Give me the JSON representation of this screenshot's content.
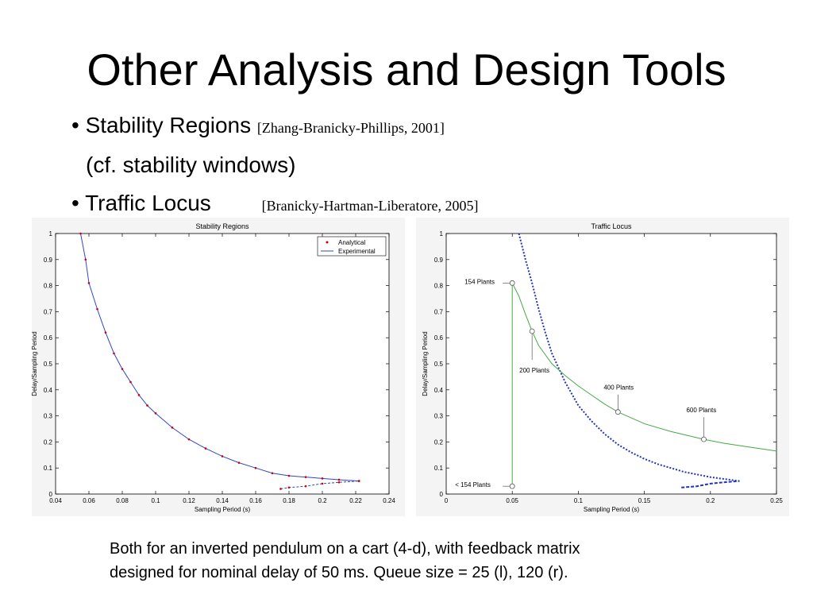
{
  "slide": {
    "title": "Other Analysis and Design Tools",
    "bullets": [
      {
        "text": "• Stability Regions",
        "citation": "[Zhang-Branicky-Phillips, 2001]"
      },
      {
        "text": "(cf. stability windows)"
      },
      {
        "text": "• Traffic Locus",
        "citation": "[Branicky-Hartman-Liberatore, 2005]"
      }
    ],
    "caption_lines": [
      "Both for an inverted pendulum on a cart (4-d), with feedback matrix",
      "designed for nominal delay of 50 ms. Queue size = 25 (l), 120 (r)."
    ]
  },
  "chart_data": [
    {
      "type": "scatter",
      "title": "Stability Regions",
      "xlabel": "Sampling Period (s)",
      "ylabel": "Delay/Sampling Period",
      "xlim": [
        0.04,
        0.24
      ],
      "ylim": [
        0,
        1
      ],
      "xticks": [
        0.04,
        0.06,
        0.08,
        0.1,
        0.12,
        0.14,
        0.16,
        0.18,
        0.2,
        0.22,
        0.24
      ],
      "xtick_labels": [
        "0.04",
        "0.06",
        "0.08",
        "0.1",
        "0.12",
        "0.14",
        "0.16",
        "0.18",
        "0.2",
        "0.22",
        "0.24"
      ],
      "yticks": [
        0,
        0.1,
        0.2,
        0.3,
        0.4,
        0.5,
        0.6,
        0.7,
        0.8,
        0.9,
        1
      ],
      "ytick_labels": [
        "0",
        "0.1",
        "0.2",
        "0.3",
        "0.4",
        "0.5",
        "0.6",
        "0.7",
        "0.8",
        "0.9",
        "1"
      ],
      "grid": false,
      "legend_position": "top-right",
      "series": [
        {
          "name": "Analytical",
          "color": "#cc0000",
          "x": [
            0.055,
            0.058,
            0.06,
            0.065,
            0.07,
            0.075,
            0.08,
            0.085,
            0.09,
            0.095,
            0.1,
            0.11,
            0.12,
            0.13,
            0.14,
            0.15,
            0.16,
            0.17,
            0.18,
            0.19,
            0.2,
            0.21,
            0.222
          ],
          "y": [
            1.0,
            0.9,
            0.81,
            0.71,
            0.62,
            0.54,
            0.48,
            0.43,
            0.38,
            0.34,
            0.31,
            0.255,
            0.21,
            0.175,
            0.145,
            0.12,
            0.1,
            0.08,
            0.07,
            0.065,
            0.06,
            0.055,
            0.05
          ]
        },
        {
          "name": "Experimental",
          "color": "#3344cc",
          "x": [
            0.055,
            0.058,
            0.06,
            0.065,
            0.07,
            0.075,
            0.08,
            0.085,
            0.09,
            0.095,
            0.1,
            0.11,
            0.12,
            0.13,
            0.14,
            0.15,
            0.16,
            0.17,
            0.18,
            0.19,
            0.2,
            0.21,
            0.222
          ],
          "y": [
            1.0,
            0.9,
            0.81,
            0.71,
            0.62,
            0.54,
            0.48,
            0.43,
            0.38,
            0.34,
            0.31,
            0.255,
            0.21,
            0.175,
            0.145,
            0.12,
            0.1,
            0.08,
            0.07,
            0.065,
            0.06,
            0.055,
            0.05
          ]
        }
      ],
      "lower_branch": {
        "x": [
          0.175,
          0.18,
          0.19,
          0.2,
          0.21,
          0.222
        ],
        "y": [
          0.02,
          0.025,
          0.03,
          0.04,
          0.045,
          0.05
        ]
      }
    },
    {
      "type": "scatter",
      "title": "Traffic Locus",
      "xlabel": "Sampling Period (s)",
      "ylabel": "Delay/Sampling Period",
      "xlim": [
        0,
        0.25
      ],
      "ylim": [
        0,
        1
      ],
      "xticks": [
        0,
        0.05,
        0.1,
        0.15,
        0.2,
        0.25
      ],
      "xtick_labels": [
        "0",
        "0.05",
        "0.1",
        "0.15",
        "0.2",
        "0.25"
      ],
      "yticks": [
        0,
        0.1,
        0.2,
        0.3,
        0.4,
        0.5,
        0.6,
        0.7,
        0.8,
        0.9,
        1
      ],
      "ytick_labels": [
        "0",
        "0.1",
        "0.2",
        "0.3",
        "0.4",
        "0.5",
        "0.6",
        "0.7",
        "0.8",
        "0.9",
        "1"
      ],
      "grid": false,
      "stability_boundary": {
        "color": "#2233bb",
        "x": [
          0.055,
          0.06,
          0.065,
          0.07,
          0.075,
          0.08,
          0.09,
          0.1,
          0.11,
          0.12,
          0.13,
          0.14,
          0.15,
          0.16,
          0.17,
          0.18,
          0.19,
          0.2,
          0.21,
          0.222
        ],
        "y": [
          1.0,
          0.9,
          0.81,
          0.71,
          0.62,
          0.54,
          0.43,
          0.34,
          0.28,
          0.23,
          0.19,
          0.16,
          0.135,
          0.115,
          0.1,
          0.085,
          0.075,
          0.065,
          0.058,
          0.05
        ]
      },
      "lower_branch": {
        "x": [
          0.178,
          0.19,
          0.2,
          0.21,
          0.222
        ],
        "y": [
          0.025,
          0.03,
          0.04,
          0.045,
          0.05
        ]
      },
      "locus": {
        "color": "#44aa44",
        "x": [
          0.05,
          0.055,
          0.06,
          0.065,
          0.07,
          0.08,
          0.09,
          0.1,
          0.11,
          0.12,
          0.13,
          0.15,
          0.17,
          0.195,
          0.21,
          0.23,
          0.25
        ],
        "y": [
          0.81,
          0.76,
          0.69,
          0.625,
          0.57,
          0.5,
          0.455,
          0.415,
          0.38,
          0.345,
          0.315,
          0.27,
          0.24,
          0.21,
          0.195,
          0.18,
          0.165
        ]
      },
      "vertical_segment": {
        "x": 0.05,
        "y": [
          0.03,
          0.81
        ]
      },
      "annotations": [
        {
          "label": "154 Plants",
          "x": 0.05,
          "y": 0.81
        },
        {
          "label": "200 Plants",
          "x": 0.065,
          "y": 0.625
        },
        {
          "label": "400 Plants",
          "x": 0.13,
          "y": 0.315
        },
        {
          "label": "600 Plants",
          "x": 0.195,
          "y": 0.21
        },
        {
          "label": "< 154 Plants",
          "x": 0.05,
          "y": 0.03
        }
      ]
    }
  ]
}
